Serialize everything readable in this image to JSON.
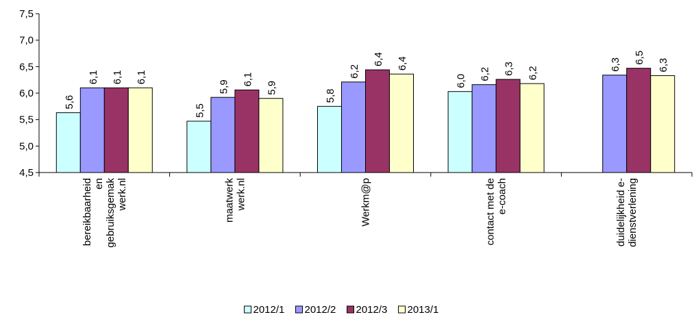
{
  "chart_data": {
    "type": "bar",
    "categories": [
      [
        "bereikbaarheid",
        "en",
        "gebruiksgemak",
        "werk.nl"
      ],
      [
        "maatwerk",
        "werk.nl"
      ],
      [
        "Werkm@p"
      ],
      [
        "contact met de",
        "e-coach"
      ],
      [
        "duidelijkheid e-",
        "dienstverlening"
      ]
    ],
    "series": [
      {
        "name": "2012/1",
        "color": "#ccffff",
        "values": [
          5.63,
          5.47,
          5.75,
          6.03,
          null
        ],
        "value_labels": [
          "5,6",
          "5,5",
          "5,8",
          "6,0",
          null
        ]
      },
      {
        "name": "2012/2",
        "color": "#9999ff",
        "values": [
          6.1,
          5.92,
          6.21,
          6.16,
          6.34
        ],
        "value_labels": [
          "6,1",
          "5,9",
          "6,2",
          "6,2",
          "6,3"
        ]
      },
      {
        "name": "2012/3",
        "color": "#993366",
        "values": [
          6.1,
          6.06,
          6.44,
          6.26,
          6.47
        ],
        "value_labels": [
          "6,1",
          "6,1",
          "6,4",
          "6,3",
          "6,5"
        ]
      },
      {
        "name": "2013/1",
        "color": "#ffffcc",
        "values": [
          6.1,
          5.9,
          6.36,
          6.18,
          6.33
        ],
        "value_labels": [
          "6,1",
          "5,9",
          "6,4",
          "6,2",
          "6,3"
        ]
      }
    ],
    "ylim": [
      4.5,
      7.5
    ],
    "yticks": [
      {
        "value": 4.5,
        "label": "4,5"
      },
      {
        "value": 5.0,
        "label": "5,0"
      },
      {
        "value": 5.5,
        "label": "5,5"
      },
      {
        "value": 6.0,
        "label": "6,0"
      },
      {
        "value": 6.5,
        "label": "6,5"
      },
      {
        "value": 7.0,
        "label": "7,0"
      },
      {
        "value": 7.5,
        "label": "7,5"
      }
    ],
    "legend": "bottom"
  }
}
